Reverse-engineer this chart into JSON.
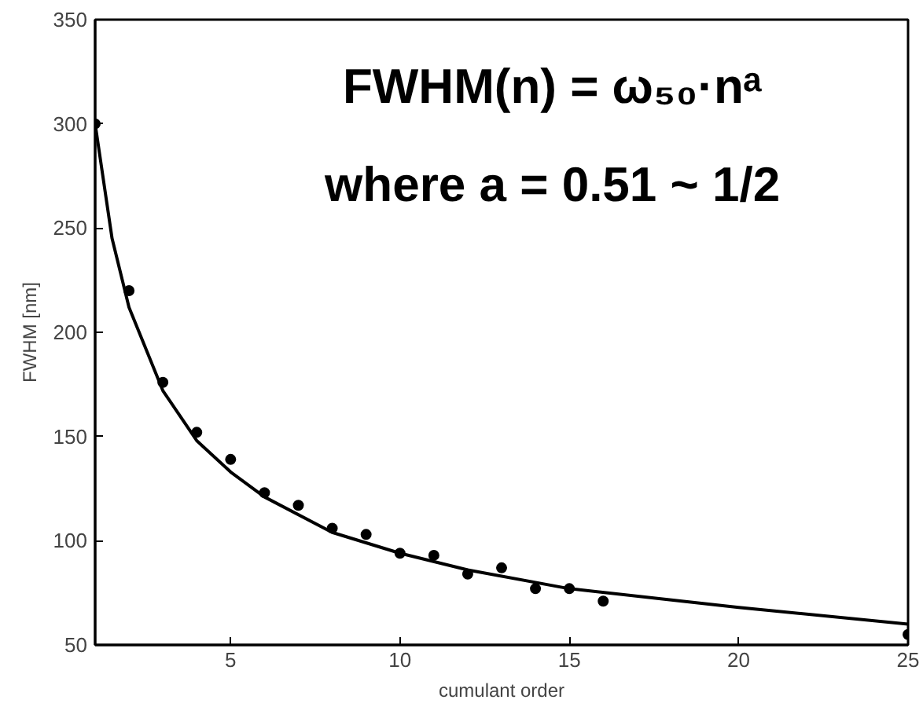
{
  "chart_data": {
    "type": "scatter",
    "xlabel": "cumulant order",
    "ylabel": "FWHM [nm]",
    "xlim": [
      1,
      25
    ],
    "ylim": [
      50,
      350
    ],
    "xticks": [
      5,
      10,
      15,
      20,
      25
    ],
    "yticks": [
      50,
      100,
      150,
      200,
      250,
      300,
      350
    ],
    "grid": false,
    "marker": "circle",
    "series": [
      {
        "color": "#000000",
        "x": [
          1,
          2,
          3,
          4,
          5,
          6,
          7,
          8,
          9,
          10,
          11,
          12,
          13,
          14,
          15,
          16,
          25
        ],
        "values": [
          300,
          220,
          176,
          152,
          139,
          123,
          117,
          106,
          103,
          94,
          93,
          84,
          87,
          77,
          77,
          71,
          55
        ]
      },
      {
        "type": "line",
        "color": "#000000",
        "marker": "none",
        "x": [
          1,
          1.5,
          2,
          3,
          4,
          5,
          6,
          8,
          10,
          12,
          15,
          20,
          25
        ],
        "values": [
          300,
          245,
          212,
          172,
          148,
          133,
          121,
          104,
          94,
          86,
          77,
          68,
          60
        ]
      }
    ],
    "annotations": [
      "FWHM(n) = ω₅₀·nᵃ",
      "where a = 0.51 ~ 1/2"
    ]
  }
}
